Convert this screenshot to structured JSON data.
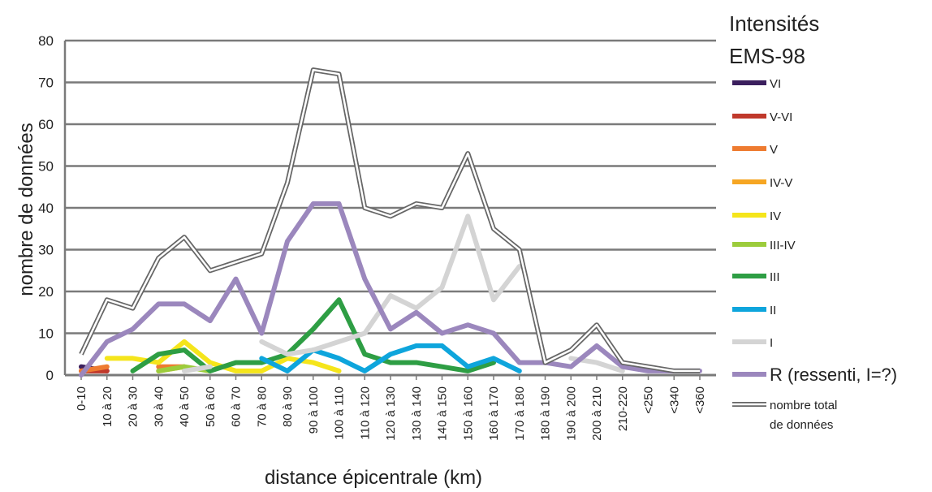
{
  "chart_data": {
    "type": "line",
    "title": "",
    "xlabel": "distance épicentrale (km)",
    "ylabel": "nombre de données",
    "ylim": [
      0,
      80
    ],
    "yticks": [
      "0",
      "10",
      "20",
      "30",
      "40",
      "50",
      "60",
      "70",
      "80"
    ],
    "grid": true,
    "legend_position": "right",
    "legend_title": [
      "Intensités",
      "EMS-98"
    ],
    "categories": [
      "0-10",
      "10 à 20",
      "20 à 30",
      "30 à 40",
      "40 à 50",
      "50 à 60",
      "60 à 70",
      "70 à 80",
      "80 à 90",
      "90 à 100",
      "100 à 110",
      "110 à 120",
      "120 à 130",
      "130 à 140",
      "140 à 150",
      "150 à 160",
      "160 à 170",
      "170 à 180",
      "180 à 190",
      "190 à 200",
      "200 à 210",
      "210-220",
      "<250",
      "<340",
      "<360"
    ],
    "series": [
      {
        "name": "VI",
        "color": "#3b1f5e",
        "style": "solid",
        "values": [
          2,
          1,
          null,
          null,
          null,
          null,
          null,
          null,
          null,
          null,
          null,
          null,
          null,
          null,
          null,
          null,
          null,
          null,
          null,
          null,
          null,
          null,
          null,
          null,
          null
        ]
      },
      {
        "name": "V-VI",
        "color": "#c0392b",
        "style": "solid",
        "values": [
          1,
          1,
          null,
          null,
          null,
          null,
          null,
          null,
          null,
          null,
          null,
          null,
          null,
          null,
          null,
          null,
          null,
          null,
          null,
          null,
          null,
          null,
          null,
          null,
          null
        ]
      },
      {
        "name": "V",
        "color": "#ee7b30",
        "style": "solid",
        "values": [
          1,
          2,
          null,
          2,
          2,
          null,
          null,
          null,
          null,
          null,
          null,
          null,
          null,
          null,
          null,
          null,
          null,
          null,
          null,
          null,
          null,
          null,
          null,
          null,
          null
        ]
      },
      {
        "name": "IV-V",
        "color": "#f6a623",
        "style": "solid",
        "values": [
          null,
          null,
          null,
          1,
          2,
          null,
          null,
          null,
          null,
          null,
          null,
          null,
          null,
          null,
          null,
          null,
          null,
          null,
          null,
          null,
          null,
          null,
          null,
          null,
          null
        ]
      },
      {
        "name": "IV",
        "color": "#f5e51b",
        "style": "solid",
        "values": [
          null,
          4,
          4,
          3,
          8,
          3,
          1,
          1,
          4,
          3,
          1,
          null,
          null,
          null,
          null,
          null,
          null,
          null,
          null,
          null,
          null,
          null,
          null,
          null,
          null
        ]
      },
      {
        "name": "III-IV",
        "color": "#9ccc3c",
        "style": "solid",
        "values": [
          null,
          null,
          null,
          1,
          2,
          1,
          null,
          null,
          null,
          null,
          null,
          null,
          null,
          null,
          null,
          null,
          null,
          null,
          null,
          null,
          null,
          null,
          null,
          null,
          null
        ]
      },
      {
        "name": "III",
        "color": "#2e9e44",
        "style": "solid",
        "values": [
          null,
          null,
          1,
          5,
          6,
          1,
          3,
          3,
          5,
          11,
          18,
          5,
          3,
          3,
          2,
          1,
          3,
          null,
          null,
          null,
          null,
          null,
          null,
          null,
          null
        ]
      },
      {
        "name": "II",
        "color": "#0ea5dc",
        "style": "solid",
        "values": [
          null,
          null,
          null,
          null,
          null,
          null,
          null,
          4,
          1,
          6,
          4,
          1,
          5,
          7,
          7,
          2,
          4,
          1,
          null,
          null,
          null,
          null,
          null,
          null,
          null
        ]
      },
      {
        "name": "I",
        "color": "#d4d4d4",
        "style": "solid",
        "values": [
          null,
          null,
          null,
          null,
          1,
          2,
          null,
          8,
          5,
          6,
          8,
          10,
          19,
          16,
          21,
          38,
          18,
          26,
          null,
          4,
          3,
          1,
          null,
          null,
          null
        ]
      },
      {
        "name": "R (ressenti, I=?)",
        "color": "#9b87bd",
        "style": "solid",
        "values": [
          0,
          8,
          11,
          17,
          17,
          13,
          23,
          10,
          32,
          41,
          41,
          23,
          11,
          15,
          10,
          12,
          10,
          3,
          3,
          2,
          7,
          2,
          1,
          1,
          1
        ]
      },
      {
        "name": "nombre total de données",
        "color": "#666666",
        "style": "double",
        "values": [
          5,
          18,
          16,
          28,
          33,
          25,
          27,
          29,
          46,
          73,
          72,
          40,
          38,
          41,
          40,
          53,
          35,
          30,
          3,
          6,
          12,
          3,
          2,
          1,
          1
        ]
      }
    ],
    "legend_labels": [
      {
        "lines": [
          "VI"
        ],
        "big": false
      },
      {
        "lines": [
          "V-VI"
        ],
        "big": false
      },
      {
        "lines": [
          "V"
        ],
        "big": false
      },
      {
        "lines": [
          "IV-V"
        ],
        "big": false
      },
      {
        "lines": [
          "IV"
        ],
        "big": false
      },
      {
        "lines": [
          "III-IV"
        ],
        "big": false
      },
      {
        "lines": [
          "III"
        ],
        "big": false
      },
      {
        "lines": [
          "II"
        ],
        "big": false
      },
      {
        "lines": [
          "I"
        ],
        "big": false
      },
      {
        "lines": [
          "R (ressenti, I=?)"
        ],
        "big": true
      },
      {
        "lines": [
          "nombre total",
          "de données"
        ],
        "big": false
      }
    ]
  }
}
